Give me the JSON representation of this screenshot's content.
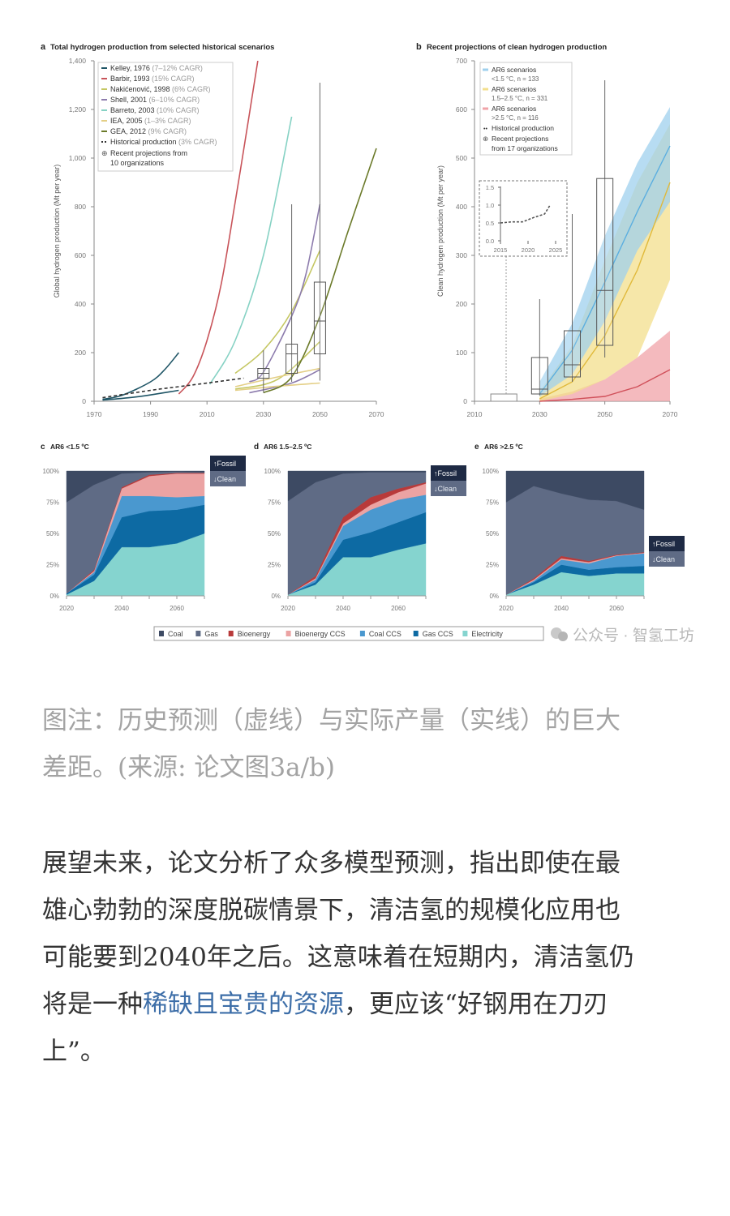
{
  "chart_data": [
    {
      "id": "a",
      "type": "line",
      "panel_letter": "a",
      "title": "Total hydrogen production from selected historical scenarios",
      "ylabel": "Global hydrogen production (Mt per year)",
      "xlim": [
        1970,
        2070
      ],
      "ylim": [
        0,
        1400
      ],
      "xticks": [
        1970,
        1990,
        2010,
        2030,
        2050,
        2070
      ],
      "yticks": [
        0,
        200,
        400,
        600,
        800,
        1000,
        1200,
        1400
      ],
      "ytick_labels": [
        "0",
        "200",
        "400",
        "600",
        "800",
        "1,000",
        "1,200",
        "1,400"
      ],
      "legend_position": "top-left",
      "series": [
        {
          "name": "Kelley, 1976",
          "note": "(7–12% CAGR)",
          "color": "#1f5566",
          "lines": [
            [
              [
                1973,
                8
              ],
              [
                1980,
                25
              ],
              [
                1990,
                80
              ],
              [
                1995,
                130
              ],
              [
                2000,
                200
              ]
            ],
            [
              [
                1973,
                5
              ],
              [
                1985,
                18
              ],
              [
                2000,
                45
              ]
            ]
          ]
        },
        {
          "name": "Barbir, 1993",
          "note": "(15% CAGR)",
          "color": "#c8545a",
          "lines": [
            [
              [
                2000,
                30
              ],
              [
                2005,
                100
              ],
              [
                2010,
                250
              ],
              [
                2015,
                480
              ],
              [
                2020,
                820
              ],
              [
                2025,
                1180
              ],
              [
                2028,
                1400
              ]
            ]
          ]
        },
        {
          "name": "Nakićenović, 1998",
          "note": "(6% CAGR)",
          "color": "#c5c763",
          "lines": [
            [
              [
                2020,
                115
              ],
              [
                2030,
                210
              ],
              [
                2040,
                370
              ],
              [
                2050,
                620
              ]
            ],
            [
              [
                2020,
                50
              ],
              [
                2035,
                90
              ],
              [
                2050,
                245
              ]
            ]
          ]
        },
        {
          "name": "Shell, 2001",
          "note": "(6–10% CAGR)",
          "color": "#8d7cad",
          "lines": [
            [
              [
                2025,
                80
              ],
              [
                2030,
                120
              ],
              [
                2040,
                350
              ],
              [
                2045,
                520
              ],
              [
                2050,
                810
              ]
            ],
            [
              [
                2025,
                35
              ],
              [
                2040,
                75
              ],
              [
                2050,
                130
              ]
            ]
          ]
        },
        {
          "name": "Barreto, 2003",
          "note": "(10% CAGR)",
          "color": "#86d2c4",
          "lines": [
            [
              [
                2011,
                70
              ],
              [
                2020,
                250
              ],
              [
                2030,
                600
              ],
              [
                2040,
                1170
              ]
            ]
          ]
        },
        {
          "name": "IEA, 2005",
          "note": "(1–3% CAGR)",
          "color": "#e4cf86",
          "lines": [
            [
              [
                2020,
                45
              ],
              [
                2035,
                62
              ],
              [
                2050,
                75
              ]
            ],
            [
              [
                2020,
                60
              ],
              [
                2035,
                100
              ],
              [
                2050,
                135
              ]
            ]
          ]
        },
        {
          "name": "GEA, 2012",
          "note": "(9% CAGR)",
          "color": "#6b7a2a",
          "lines": [
            [
              [
                2030,
                35
              ],
              [
                2040,
                100
              ],
              [
                2050,
                350
              ],
              [
                2060,
                700
              ],
              [
                2070,
                1040
              ]
            ]
          ]
        },
        {
          "name": "Historical production",
          "note": "(3% CAGR)",
          "color": "#333333",
          "dashed": true,
          "lines": [
            [
              [
                1973,
                15
              ],
              [
                1990,
                45
              ],
              [
                2000,
                60
              ],
              [
                2010,
                75
              ],
              [
                2023,
                95
              ]
            ]
          ]
        }
      ],
      "boxplot_legend": "Recent projections from 10 organizations",
      "boxes": [
        {
          "x": 2030,
          "min": 35,
          "q1": 95,
          "median": 115,
          "q3": 135,
          "max": 210
        },
        {
          "x": 2040,
          "min": 80,
          "q1": 115,
          "median": 195,
          "q3": 235,
          "max": 810
        },
        {
          "x": 2050,
          "min": 85,
          "q1": 195,
          "median": 330,
          "q3": 490,
          "max": 1310
        }
      ]
    },
    {
      "id": "b",
      "type": "area",
      "panel_letter": "b",
      "title": "Recent projections of clean hydrogen production",
      "ylabel": "Clean hydrogen production (Mt per year)",
      "xlim": [
        2010,
        2070
      ],
      "ylim": [
        0,
        700
      ],
      "xticks": [
        2010,
        2030,
        2050,
        2070
      ],
      "yticks": [
        0,
        100,
        200,
        300,
        400,
        500,
        600,
        700
      ],
      "legend_position": "top-left",
      "bands": [
        {
          "name": "AR6 scenarios",
          "sub": "<1.5 °C, n = 133",
          "color": "#5aaee0",
          "fill": "#9fd0ee",
          "x": [
            2030,
            2040,
            2050,
            2060,
            2070
          ],
          "lower": [
            10,
            55,
            165,
            310,
            410
          ],
          "upper": [
            40,
            160,
            340,
            490,
            605
          ],
          "median": [
            15,
            105,
            245,
            390,
            525
          ]
        },
        {
          "name": "AR6 scenarios",
          "sub": "1.5–2.5 °C, n = 331",
          "color": "#e0b93a",
          "fill": "#f3df8c",
          "x": [
            2030,
            2040,
            2050,
            2060,
            2070
          ],
          "lower": [
            0,
            15,
            45,
            90,
            250
          ],
          "upper": [
            20,
            115,
            290,
            450,
            570
          ],
          "median": [
            5,
            40,
            135,
            270,
            450
          ]
        },
        {
          "name": "AR6 scenarios",
          "sub": ">2.5 °C, n = 116",
          "color": "#d0505a",
          "fill": "#f0a3a8",
          "x": [
            2030,
            2040,
            2050,
            2060,
            2070
          ],
          "lower": [
            0,
            0,
            0,
            0,
            0
          ],
          "upper": [
            5,
            20,
            45,
            90,
            145
          ],
          "median": [
            0,
            4,
            10,
            30,
            65
          ]
        }
      ],
      "historical_legend": "Historical production",
      "boxplot_legend": "Recent projections from 17 organizations",
      "historical_box": {
        "x_from": 2015,
        "x_to": 2023,
        "max": 15
      },
      "boxes": [
        {
          "x": 2030,
          "min": 12,
          "q1": 15,
          "median": 25,
          "q3": 90,
          "max": 210
        },
        {
          "x": 2040,
          "min": 40,
          "q1": 50,
          "median": 75,
          "q3": 145,
          "max": 385
        },
        {
          "x": 2050,
          "min": 90,
          "q1": 115,
          "median": 228,
          "q3": 458,
          "max": 660
        }
      ],
      "inset": {
        "xlim": [
          2015,
          2025
        ],
        "ylim": [
          0,
          1.5
        ],
        "xticks": [
          2015,
          2020,
          2025
        ],
        "yticks": [
          0,
          0.5,
          1.0,
          1.5
        ],
        "ytick_labels": [
          "0.0",
          "0.5",
          "1.0",
          "1.5"
        ],
        "points": [
          [
            2015,
            0.5
          ],
          [
            2017,
            0.53
          ],
          [
            2019,
            0.53
          ],
          [
            2021,
            0.65
          ],
          [
            2023,
            0.75
          ],
          [
            2024,
            1.0
          ]
        ]
      }
    },
    {
      "id": "c",
      "type": "area",
      "stacked": true,
      "panel_letter": "c",
      "title": "AR6 <1.5 ºC",
      "x": [
        2020,
        2030,
        2040,
        2050,
        2060,
        2070
      ],
      "xticks": [
        2020,
        2040,
        2060
      ],
      "ylim": [
        0,
        100
      ],
      "yticks": [
        "0%",
        "25%",
        "50%",
        "75%",
        "100%"
      ],
      "fossil_label": "↑Fossil",
      "clean_label": "↓Clean",
      "values": {
        "Electricity": [
          1,
          12,
          39,
          39,
          42,
          50
        ],
        "Gas CCS": [
          1,
          5,
          24,
          29,
          27,
          23
        ],
        "Coal CCS": [
          0,
          2,
          17,
          12,
          10,
          7
        ],
        "Bioenergy CCS": [
          0,
          1,
          6,
          16,
          19,
          18
        ],
        "Bioenergy": [
          0,
          1,
          1,
          1,
          0.5,
          0.5
        ],
        "Gas": [
          73,
          68,
          11,
          2,
          1,
          0.5
        ],
        "Coal": [
          25,
          11,
          2,
          1,
          0.5,
          1
        ]
      }
    },
    {
      "id": "d",
      "type": "area",
      "stacked": true,
      "panel_letter": "d",
      "title": "AR6 1.5–2.5 ºC",
      "x": [
        2020,
        2030,
        2040,
        2050,
        2060,
        2070
      ],
      "xticks": [
        2020,
        2040,
        2060
      ],
      "ylim": [
        0,
        100
      ],
      "yticks": [
        "0%",
        "25%",
        "50%",
        "75%",
        "100%"
      ],
      "fossil_label": "↑Fossil",
      "clean_label": "↓Clean",
      "values": {
        "Electricity": [
          1,
          9,
          31,
          31,
          37,
          42
        ],
        "Gas CCS": [
          0,
          2,
          14,
          20,
          22,
          25
        ],
        "Coal CCS": [
          0,
          2,
          11,
          18,
          18,
          14
        ],
        "Bioenergy CCS": [
          0,
          1,
          2,
          4,
          6,
          9
        ],
        "Bioenergy": [
          0,
          2,
          5,
          6,
          3,
          1
        ],
        "Gas": [
          75,
          75,
          35,
          20,
          13,
          8
        ],
        "Coal": [
          24,
          9,
          2,
          1,
          1,
          1
        ]
      }
    },
    {
      "id": "e",
      "type": "area",
      "stacked": true,
      "panel_letter": "e",
      "title": "AR6 >2.5 ºC",
      "x": [
        2020,
        2030,
        2040,
        2050,
        2060,
        2070
      ],
      "xticks": [
        2020,
        2040,
        2060
      ],
      "ylim": [
        0,
        100
      ],
      "yticks": [
        "0%",
        "25%",
        "50%",
        "75%",
        "100%"
      ],
      "fossil_label": "↑Fossil",
      "clean_label": "↓Clean",
      "values": {
        "Electricity": [
          1,
          9,
          19,
          16,
          18,
          18
        ],
        "Gas CCS": [
          0,
          2,
          6,
          5,
          5,
          6
        ],
        "Coal CCS": [
          0,
          1,
          4,
          5,
          9,
          10
        ],
        "Bioenergy CCS": [
          0,
          1,
          1,
          1,
          0.5,
          0.5
        ],
        "Bioenergy": [
          0,
          1,
          2,
          1,
          0.5,
          0.5
        ],
        "Gas": [
          74,
          74,
          50,
          49,
          43,
          34
        ],
        "Coal": [
          25,
          12,
          18,
          23,
          24,
          31
        ]
      }
    }
  ],
  "stack_legend": [
    {
      "name": "Coal",
      "color": "#3d4a63"
    },
    {
      "name": "Gas",
      "color": "#5f6b85"
    },
    {
      "name": "Bioenergy",
      "color": "#b83a3a"
    },
    {
      "name": "Bioenergy CCS",
      "color": "#eba3a3"
    },
    {
      "name": "Coal CCS",
      "color": "#4a98cf"
    },
    {
      "name": "Gas CCS",
      "color": "#0d6aa3"
    },
    {
      "name": "Electricity",
      "color": "#85d4cf"
    }
  ],
  "watermark": "公众号 · 智氢工坊",
  "caption": {
    "lines": [
      "图注：历史预测（虚线）与实际产量（实线）的巨大",
      "差距。(来源: 论文图3a/b)"
    ]
  },
  "body": {
    "line1": "展望未来，论文分析了众多模型预测，指出即使在最",
    "line2": "雄心勃勃的深度脱碳情景下，清洁氢的规模化应用也",
    "line3": "可能要到2040年之后。这意味着在短期内，清洁氢仍",
    "line4_before": "将是一种",
    "line4_link": "稀缺且宝贵的资源",
    "line4_after": "，更应该“好钢用在刀刃",
    "line5": "上”。",
    "link_color": "#3d6ea8"
  }
}
